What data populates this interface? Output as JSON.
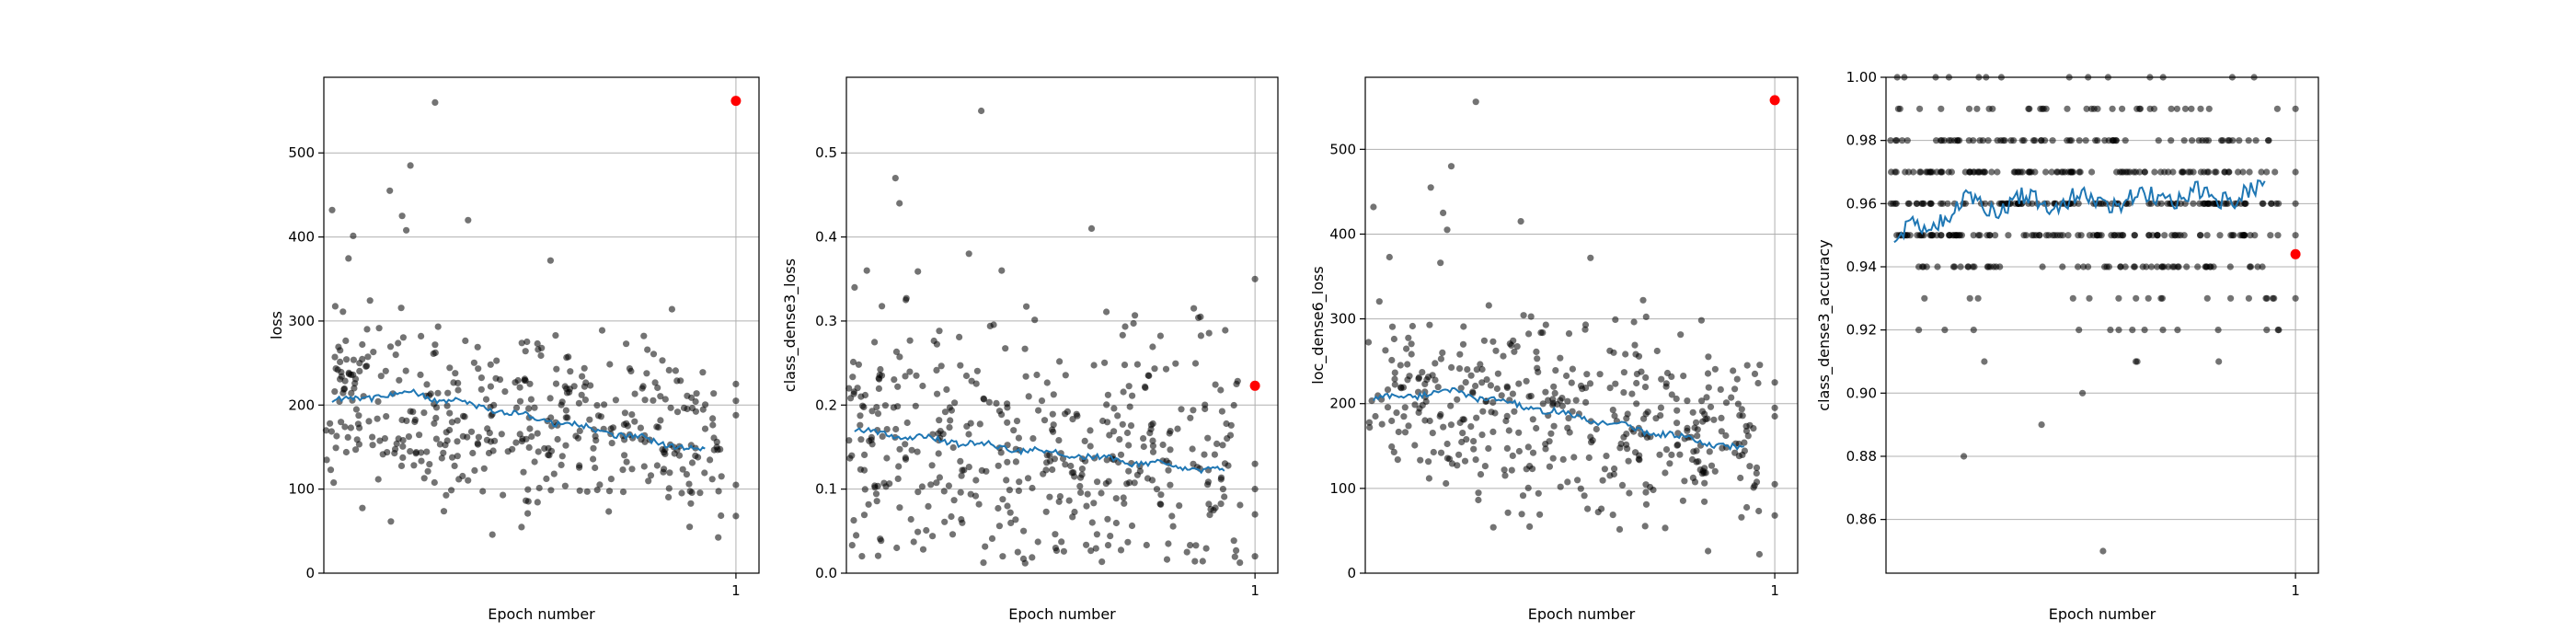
{
  "colors": {
    "points": "#000000",
    "moving_average": "#1f77b4",
    "last_point": "#ff0000",
    "grid": "#b0b0b0"
  },
  "chart_data": [
    {
      "type": "scatter",
      "title": "",
      "xlabel": "Epoch number",
      "ylabel": "loss",
      "x_ticks": [
        1
      ],
      "y_ticks": [
        0,
        100,
        200,
        300,
        400,
        500
      ],
      "ylim": [
        0,
        590
      ],
      "grid": "horizontal and vertical at ticks",
      "n_points": 420,
      "seed": 11,
      "base_start": 210,
      "base_end": 150,
      "noise": 55,
      "outliers": [
        [
          0.02,
          432
        ],
        [
          0.16,
          455
        ],
        [
          0.21,
          485
        ],
        [
          0.27,
          560
        ],
        [
          0.35,
          420
        ],
        [
          0.55,
          372
        ],
        [
          0.2,
          408
        ],
        [
          0.19,
          425
        ]
      ],
      "moving_average": {
        "start": 205,
        "mid": 215,
        "end": 145
      },
      "last_point": {
        "x": 1,
        "y": 562
      },
      "mini_points": [
        [
          1.0,
          225
        ],
        [
          1.0,
          205
        ],
        [
          1.0,
          188
        ],
        [
          1.0,
          68
        ],
        [
          1.0,
          105
        ]
      ]
    },
    {
      "type": "scatter",
      "title": "",
      "xlabel": "Epoch number",
      "ylabel": "class_dense3_loss",
      "x_ticks": [
        1
      ],
      "y_ticks": [
        0.0,
        0.1,
        0.2,
        0.3,
        0.4,
        0.5
      ],
      "ylim": [
        0,
        0.59
      ],
      "grid": "horizontal and vertical at ticks",
      "n_points": 420,
      "seed": 23,
      "base_start": 0.17,
      "base_end": 0.12,
      "noise": 0.075,
      "outliers": [
        [
          0.02,
          0.34
        ],
        [
          0.12,
          0.47
        ],
        [
          0.13,
          0.44
        ],
        [
          0.33,
          0.55
        ],
        [
          0.6,
          0.41
        ],
        [
          0.3,
          0.38
        ],
        [
          0.05,
          0.36
        ],
        [
          0.38,
          0.36
        ]
      ],
      "moving_average": {
        "start": 0.17,
        "mid": 0.16,
        "end": 0.12
      },
      "last_point": {
        "x": 1,
        "y": 0.223
      },
      "mini_points": [
        [
          1.0,
          0.35
        ],
        [
          1.0,
          0.1
        ],
        [
          1.0,
          0.07
        ],
        [
          1.0,
          0.02
        ],
        [
          1.0,
          0.13
        ]
      ]
    },
    {
      "type": "scatter",
      "title": "",
      "xlabel": "Epoch number",
      "ylabel": "loc_dense6_loss",
      "x_ticks": [
        1
      ],
      "y_ticks": [
        0,
        100,
        200,
        300,
        400,
        500
      ],
      "ylim": [
        0,
        585
      ],
      "grid": "horizontal and vertical at ticks",
      "n_points": 420,
      "seed": 37,
      "base_start": 210,
      "base_end": 150,
      "noise": 55,
      "outliers": [
        [
          0.02,
          432
        ],
        [
          0.16,
          455
        ],
        [
          0.21,
          480
        ],
        [
          0.27,
          556
        ],
        [
          0.38,
          415
        ],
        [
          0.55,
          372
        ],
        [
          0.19,
          425
        ],
        [
          0.2,
          405
        ]
      ],
      "moving_average": {
        "start": 205,
        "mid": 215,
        "end": 145
      },
      "last_point": {
        "x": 1,
        "y": 558
      },
      "mini_points": [
        [
          1.0,
          225
        ],
        [
          1.0,
          195
        ],
        [
          1.0,
          185
        ],
        [
          1.0,
          68
        ],
        [
          1.0,
          105
        ]
      ]
    },
    {
      "type": "scatter",
      "title": "",
      "xlabel": "Epoch number",
      "ylabel": "class_dense3_accuracy",
      "x_ticks": [
        1
      ],
      "y_ticks": [
        0.86,
        0.88,
        0.9,
        0.92,
        0.94,
        0.96,
        0.98,
        1.0
      ],
      "ylim": [
        0.843,
        1.0
      ],
      "grid": "horizontal and vertical at ticks",
      "n_points": 520,
      "seed": 53,
      "levels": [
        0.9,
        0.91,
        0.92,
        0.93,
        0.94,
        0.95,
        0.96,
        0.97,
        0.98,
        0.99,
        1.0
      ],
      "level_weights": [
        1,
        2,
        8,
        10,
        22,
        46,
        58,
        48,
        36,
        18,
        8
      ],
      "outliers": [
        [
          0.19,
          0.88
        ],
        [
          0.38,
          0.89
        ],
        [
          0.53,
          0.85
        ],
        [
          0.48,
          0.9
        ]
      ],
      "moving_average": {
        "start": 0.949,
        "mid": 0.96,
        "end": 0.963
      },
      "last_point": {
        "x": 1,
        "y": 0.944
      },
      "mini_points": [
        [
          1.0,
          0.99
        ],
        [
          1.0,
          0.97
        ],
        [
          1.0,
          0.96
        ],
        [
          1.0,
          0.95
        ],
        [
          1.0,
          0.93
        ]
      ]
    }
  ]
}
